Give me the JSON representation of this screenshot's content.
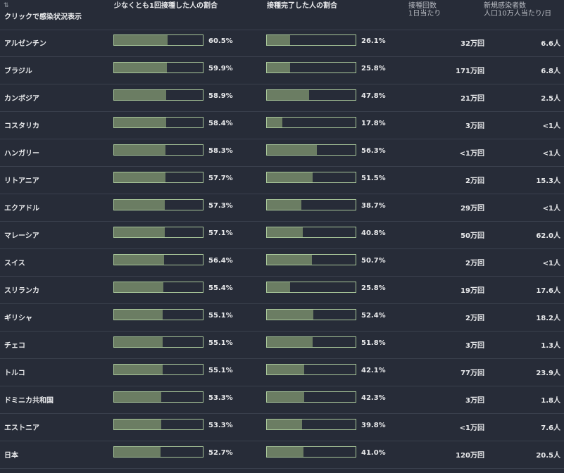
{
  "header": {
    "sort_icon": "⇅",
    "country_hint": "クリックで感染状況表示",
    "one_dose": "少なくとも1回接種した人の割合",
    "fully_vaccinated": "接種完了した人の割合",
    "doses_line1": "接種回数",
    "doses_line2": "1日当たり",
    "cases_line1": "新規感染者数",
    "cases_line2": "人口10万人当たり/日"
  },
  "colors": {
    "background": "#272c38",
    "bar_fill": "#6b7d63",
    "bar_border": "#a9c79a"
  },
  "rows": [
    {
      "country": "アルゼンチン",
      "one": 60.5,
      "one_label": "60.5%",
      "full": 26.1,
      "full_label": "26.1%",
      "doses": "32万回",
      "cases": "6.6人"
    },
    {
      "country": "ブラジル",
      "one": 59.9,
      "one_label": "59.9%",
      "full": 25.8,
      "full_label": "25.8%",
      "doses": "171万回",
      "cases": "6.8人"
    },
    {
      "country": "カンボジア",
      "one": 58.9,
      "one_label": "58.9%",
      "full": 47.8,
      "full_label": "47.8%",
      "doses": "21万回",
      "cases": "2.5人"
    },
    {
      "country": "コスタリカ",
      "one": 58.4,
      "one_label": "58.4%",
      "full": 17.8,
      "full_label": "17.8%",
      "doses": "3万回",
      "cases": "<1人"
    },
    {
      "country": "ハンガリー",
      "one": 58.3,
      "one_label": "58.3%",
      "full": 56.3,
      "full_label": "56.3%",
      "doses": "<1万回",
      "cases": "<1人"
    },
    {
      "country": "リトアニア",
      "one": 57.7,
      "one_label": "57.7%",
      "full": 51.5,
      "full_label": "51.5%",
      "doses": "2万回",
      "cases": "15.3人"
    },
    {
      "country": "エクアドル",
      "one": 57.3,
      "one_label": "57.3%",
      "full": 38.7,
      "full_label": "38.7%",
      "doses": "29万回",
      "cases": "<1人"
    },
    {
      "country": "マレーシア",
      "one": 57.1,
      "one_label": "57.1%",
      "full": 40.8,
      "full_label": "40.8%",
      "doses": "50万回",
      "cases": "62.0人"
    },
    {
      "country": "スイス",
      "one": 56.4,
      "one_label": "56.4%",
      "full": 50.7,
      "full_label": "50.7%",
      "doses": "2万回",
      "cases": "<1人"
    },
    {
      "country": "スリランカ",
      "one": 55.4,
      "one_label": "55.4%",
      "full": 25.8,
      "full_label": "25.8%",
      "doses": "19万回",
      "cases": "17.6人"
    },
    {
      "country": "ギリシャ",
      "one": 55.1,
      "one_label": "55.1%",
      "full": 52.4,
      "full_label": "52.4%",
      "doses": "2万回",
      "cases": "18.2人"
    },
    {
      "country": "チェコ",
      "one": 55.1,
      "one_label": "55.1%",
      "full": 51.8,
      "full_label": "51.8%",
      "doses": "3万回",
      "cases": "1.3人"
    },
    {
      "country": "トルコ",
      "one": 55.1,
      "one_label": "55.1%",
      "full": 42.1,
      "full_label": "42.1%",
      "doses": "77万回",
      "cases": "23.9人"
    },
    {
      "country": "ドミニカ共和国",
      "one": 53.3,
      "one_label": "53.3%",
      "full": 42.3,
      "full_label": "42.3%",
      "doses": "3万回",
      "cases": "1.8人"
    },
    {
      "country": "エストニア",
      "one": 53.3,
      "one_label": "53.3%",
      "full": 39.8,
      "full_label": "39.8%",
      "doses": "<1万回",
      "cases": "7.6人"
    },
    {
      "country": "日本",
      "one": 52.7,
      "one_label": "52.7%",
      "full": 41.0,
      "full_label": "41.0%",
      "doses": "120万回",
      "cases": "20.5人"
    }
  ]
}
